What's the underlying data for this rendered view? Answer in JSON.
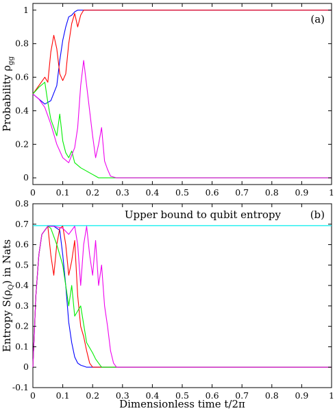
{
  "chart_data": [
    {
      "type": "line",
      "panel_label": "(a)",
      "xlabel": "",
      "ylabel": "Probability ρ",
      "ylabel_sub": "gg",
      "xlim": [
        0,
        1
      ],
      "ylim": [
        -0.04,
        1.04
      ],
      "xticks": [
        0,
        0.1,
        0.2,
        0.3,
        0.4,
        0.5,
        0.6,
        0.7,
        0.8,
        0.9,
        1
      ],
      "xtick_labels": [
        "0",
        "0.1",
        "0.2",
        "0.3",
        "0.4",
        "0.5",
        "0.6",
        "0.7",
        "0.8",
        "0.9",
        "1"
      ],
      "yticks": [
        0,
        0.2,
        0.4,
        0.6,
        0.8,
        1
      ],
      "ytick_labels": [
        "0",
        "0.2",
        "0.4",
        "0.6",
        "0.8",
        "1"
      ],
      "grid": false,
      "series": [
        {
          "color": "#0000ff",
          "x": [
            0,
            0.02,
            0.04,
            0.06,
            0.08,
            0.09,
            0.1,
            0.11,
            0.12,
            0.13,
            0.14,
            0.15,
            0.16,
            0.2,
            1
          ],
          "y": [
            0.5,
            0.47,
            0.44,
            0.46,
            0.55,
            0.7,
            0.82,
            0.9,
            0.96,
            0.97,
            0.99,
            1.0,
            1.0,
            1.0,
            1.0
          ]
        },
        {
          "color": "#ff0000",
          "x": [
            0,
            0.02,
            0.04,
            0.05,
            0.06,
            0.07,
            0.08,
            0.09,
            0.1,
            0.11,
            0.12,
            0.13,
            0.14,
            0.15,
            0.16,
            0.17,
            0.18,
            1
          ],
          "y": [
            0.5,
            0.55,
            0.6,
            0.57,
            0.75,
            0.85,
            0.77,
            0.62,
            0.58,
            0.62,
            0.8,
            0.92,
            0.98,
            0.9,
            0.97,
            1.0,
            1.0,
            1.0
          ]
        },
        {
          "color": "#00ee00",
          "x": [
            0,
            0.02,
            0.04,
            0.05,
            0.06,
            0.07,
            0.08,
            0.09,
            0.1,
            0.11,
            0.12,
            0.13,
            0.14,
            0.16,
            0.18,
            0.2,
            0.21,
            0.22,
            1
          ],
          "y": [
            0.5,
            0.54,
            0.57,
            0.45,
            0.35,
            0.3,
            0.25,
            0.38,
            0.22,
            0.15,
            0.12,
            0.16,
            0.09,
            0.06,
            0.04,
            0.02,
            0.01,
            0.0,
            0.0
          ]
        },
        {
          "color": "#ee00ee",
          "x": [
            0,
            0.02,
            0.04,
            0.06,
            0.08,
            0.1,
            0.12,
            0.14,
            0.15,
            0.16,
            0.17,
            0.18,
            0.19,
            0.2,
            0.21,
            0.22,
            0.23,
            0.24,
            0.25,
            0.26,
            0.28,
            1
          ],
          "y": [
            0.5,
            0.47,
            0.42,
            0.32,
            0.2,
            0.12,
            0.09,
            0.18,
            0.3,
            0.55,
            0.7,
            0.55,
            0.4,
            0.25,
            0.12,
            0.2,
            0.3,
            0.1,
            0.05,
            0.01,
            0.0,
            0.0
          ]
        }
      ]
    },
    {
      "type": "line",
      "panel_label": "(b)",
      "xlabel": "Dimensionless time t/2π",
      "ylabel": "Entropy S(ρ",
      "ylabel_sub": "Q",
      "ylabel_tail": ") in Nats",
      "xlim": [
        0,
        1
      ],
      "ylim": [
        -0.1,
        0.8
      ],
      "xticks": [
        0,
        0.1,
        0.2,
        0.3,
        0.4,
        0.5,
        0.6,
        0.7,
        0.8,
        0.9,
        1
      ],
      "xtick_labels": [
        "0",
        "0.1",
        "0.2",
        "0.3",
        "0.4",
        "0.5",
        "0.6",
        "0.7",
        "0.8",
        "0.9",
        "1"
      ],
      "yticks": [
        -0.1,
        0,
        0.1,
        0.2,
        0.3,
        0.4,
        0.5,
        0.6,
        0.7,
        0.8
      ],
      "ytick_labels": [
        "-0.1",
        "0",
        "0.1",
        "0.2",
        "0.3",
        "0.4",
        "0.5",
        "0.6",
        "0.7",
        "0.8"
      ],
      "grid": false,
      "annotation": "Upper bound to qubit entropy",
      "hline": {
        "y": 0.693,
        "color": "#00eeee"
      },
      "series": [
        {
          "color": "#0000ff",
          "x": [
            0,
            0.01,
            0.02,
            0.03,
            0.05,
            0.07,
            0.09,
            0.1,
            0.11,
            0.12,
            0.13,
            0.14,
            0.15,
            0.16,
            0.18,
            1
          ],
          "y": [
            0,
            0.35,
            0.55,
            0.65,
            0.69,
            0.69,
            0.67,
            0.55,
            0.4,
            0.22,
            0.12,
            0.05,
            0.02,
            0.01,
            0.0,
            0.0
          ]
        },
        {
          "color": "#ff0000",
          "x": [
            0,
            0.01,
            0.02,
            0.03,
            0.05,
            0.06,
            0.07,
            0.08,
            0.09,
            0.1,
            0.11,
            0.12,
            0.13,
            0.14,
            0.15,
            0.16,
            0.17,
            0.18,
            0.19,
            0.2,
            1
          ],
          "y": [
            0,
            0.35,
            0.55,
            0.65,
            0.69,
            0.55,
            0.45,
            0.6,
            0.68,
            0.69,
            0.6,
            0.45,
            0.52,
            0.62,
            0.35,
            0.2,
            0.15,
            0.08,
            0.02,
            0.0,
            0.0
          ]
        },
        {
          "color": "#00ee00",
          "x": [
            0,
            0.01,
            0.02,
            0.03,
            0.05,
            0.06,
            0.08,
            0.1,
            0.12,
            0.13,
            0.14,
            0.16,
            0.18,
            0.2,
            0.21,
            0.22,
            0.23,
            1
          ],
          "y": [
            0,
            0.35,
            0.55,
            0.65,
            0.69,
            0.68,
            0.6,
            0.5,
            0.3,
            0.4,
            0.25,
            0.3,
            0.12,
            0.07,
            0.04,
            0.02,
            0.0,
            0.0
          ]
        },
        {
          "color": "#ee00ee",
          "x": [
            0,
            0.01,
            0.02,
            0.03,
            0.05,
            0.07,
            0.1,
            0.12,
            0.14,
            0.15,
            0.16,
            0.17,
            0.18,
            0.19,
            0.2,
            0.21,
            0.22,
            0.23,
            0.24,
            0.25,
            0.26,
            0.27,
            0.28,
            1
          ],
          "y": [
            0,
            0.35,
            0.55,
            0.65,
            0.69,
            0.69,
            0.68,
            0.65,
            0.69,
            0.6,
            0.4,
            0.6,
            0.69,
            0.55,
            0.45,
            0.62,
            0.4,
            0.5,
            0.3,
            0.2,
            0.08,
            0.02,
            0.0,
            0.0
          ]
        }
      ]
    }
  ]
}
